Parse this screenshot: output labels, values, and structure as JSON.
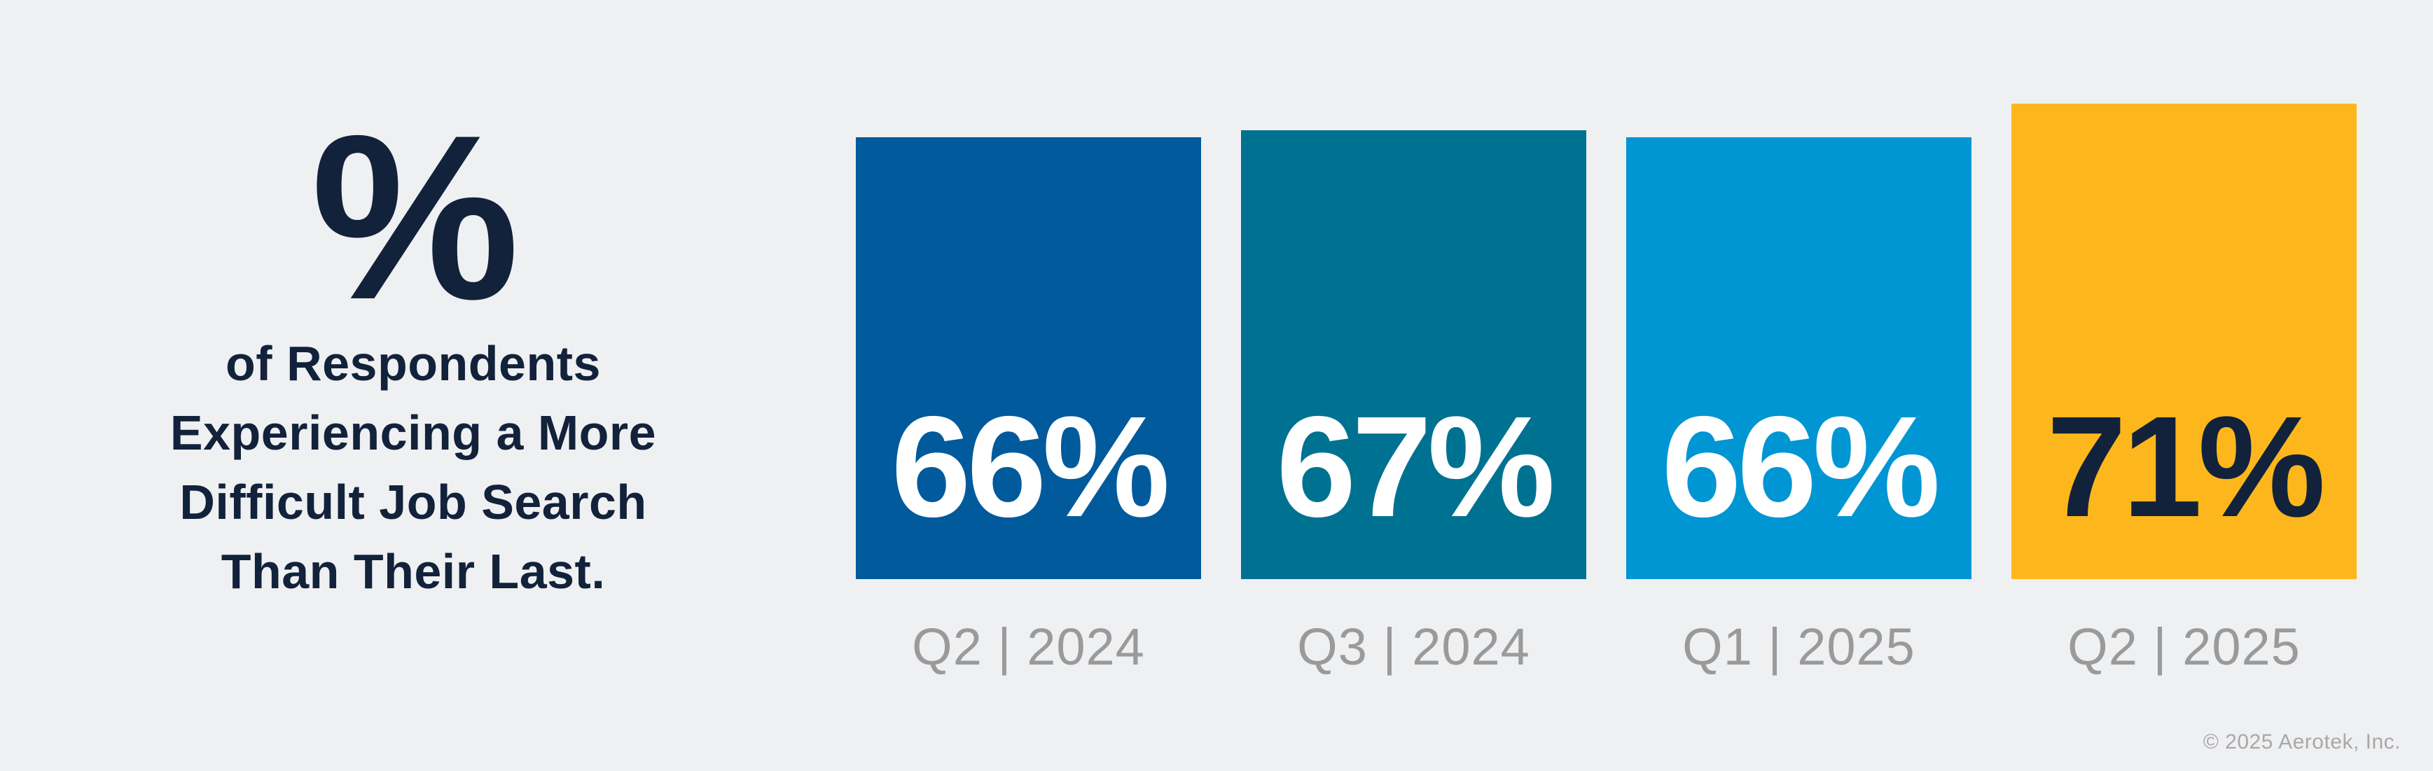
{
  "page": {
    "background": "#EFF0F2"
  },
  "intro": {
    "symbol": "%",
    "lines": [
      "of Respondents",
      "Experiencing a More",
      "Difficult Job Search",
      "Than Their Last."
    ],
    "text_color": "#12223B"
  },
  "chart_data": {
    "type": "bar",
    "title": "% of Respondents Experiencing a More Difficult Job Search Than Their Last.",
    "categories": [
      "Q2 | 2024",
      "Q3 | 2024",
      "Q1 | 2025",
      "Q2 | 2025"
    ],
    "values": [
      66,
      67,
      66,
      71
    ],
    "value_labels": [
      "66%",
      "67%",
      "66%",
      "71%"
    ],
    "bar_colors": [
      "#005A9C",
      "#007291",
      "#0095D3",
      "#FDB71C"
    ],
    "value_label_colors": [
      "#FFFFFF",
      "#FFFFFF",
      "#FFFFFF",
      "#12223B"
    ],
    "category_label_color": "#9A9A9A",
    "ylim": [
      0,
      100
    ],
    "grid": false,
    "legend": false,
    "value_labels_position": "inside-bottom"
  },
  "footer": {
    "copyright": "© 2025 Aerotek, Inc."
  }
}
